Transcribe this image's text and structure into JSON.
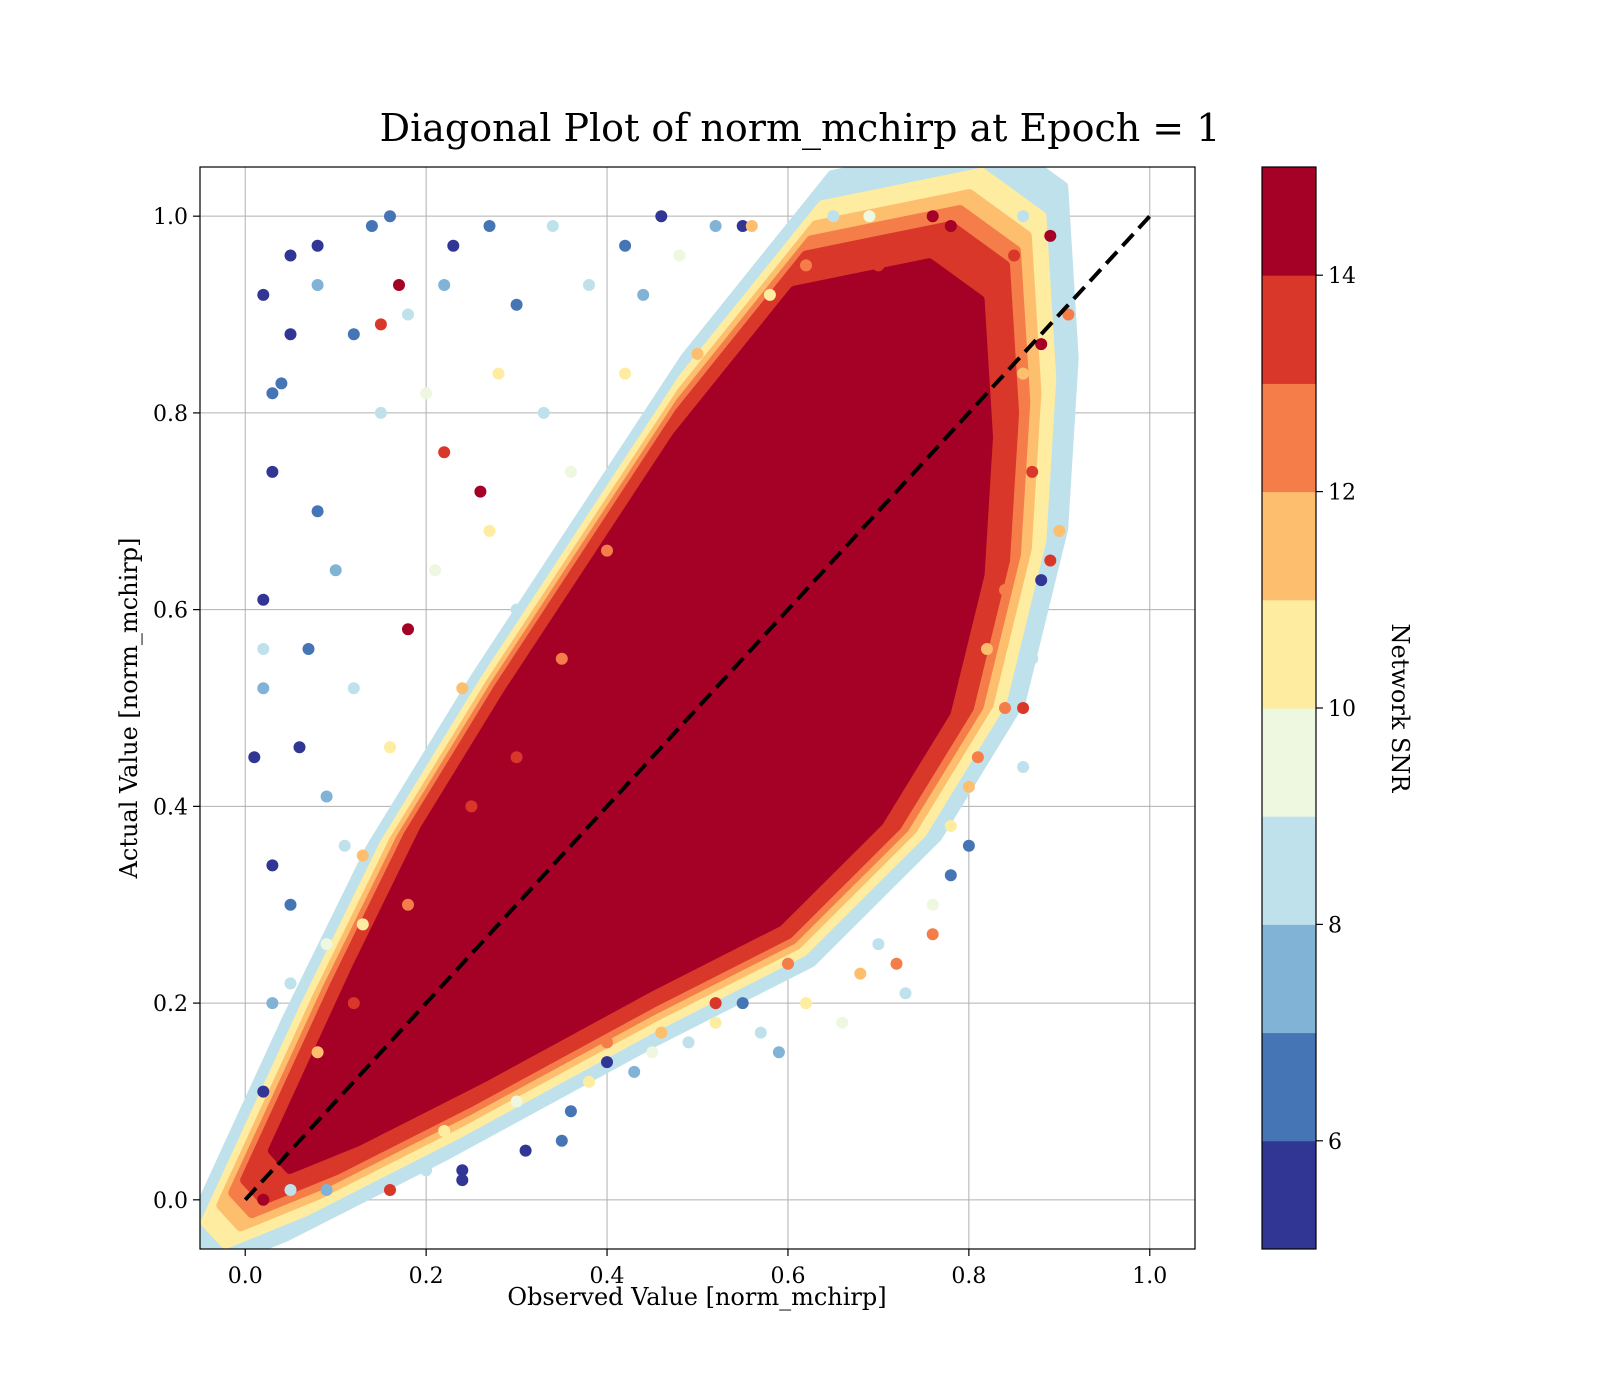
{
  "chart_data": {
    "type": "scatter",
    "title": "Diagonal Plot of norm_mchirp at Epoch = 1",
    "xlabel": "Observed Value [norm_mchirp]",
    "ylabel": "Actual Value [norm_mchirp]",
    "xlim": [
      -0.05,
      1.05
    ],
    "ylim": [
      -0.05,
      1.05
    ],
    "xticks": [
      "0.0",
      "0.2",
      "0.4",
      "0.6",
      "0.8",
      "1.0"
    ],
    "yticks": [
      "0.0",
      "0.2",
      "0.4",
      "0.6",
      "0.8",
      "1.0"
    ],
    "grid": true,
    "reference_line": {
      "x": [
        0,
        1
      ],
      "y": [
        0,
        1
      ],
      "style": "dashed",
      "color": "#000000"
    },
    "colorbar": {
      "label": "Network SNR",
      "range": [
        5,
        15
      ],
      "ticks": [
        "6",
        "8",
        "10",
        "12",
        "14"
      ],
      "colors": [
        "#313695",
        "#4575b4",
        "#80b3d5",
        "#bfe1ec",
        "#eef7e0",
        "#feeca0",
        "#fdbe6e",
        "#f47d4a",
        "#d93729",
        "#a50026"
      ]
    },
    "points": [
      {
        "x": 0.02,
        "y": 0.92,
        "snr": 5.3
      },
      {
        "x": 0.05,
        "y": 0.96,
        "snr": 5.4
      },
      {
        "x": 0.08,
        "y": 0.97,
        "snr": 5.6
      },
      {
        "x": 0.14,
        "y": 0.99,
        "snr": 6.2
      },
      {
        "x": 0.16,
        "y": 1.0,
        "snr": 6.8
      },
      {
        "x": 0.23,
        "y": 0.97,
        "snr": 5.8
      },
      {
        "x": 0.27,
        "y": 0.99,
        "snr": 6.5
      },
      {
        "x": 0.34,
        "y": 0.99,
        "snr": 8.5
      },
      {
        "x": 0.42,
        "y": 0.97,
        "snr": 6.1
      },
      {
        "x": 0.46,
        "y": 1.0,
        "snr": 5.9
      },
      {
        "x": 0.52,
        "y": 0.99,
        "snr": 7.4
      },
      {
        "x": 0.55,
        "y": 0.99,
        "snr": 5.5
      },
      {
        "x": 0.56,
        "y": 0.99,
        "snr": 11.5
      },
      {
        "x": 0.65,
        "y": 1.0,
        "snr": 8.8
      },
      {
        "x": 0.69,
        "y": 1.0,
        "snr": 9.7
      },
      {
        "x": 0.76,
        "y": 1.0,
        "snr": 14.6
      },
      {
        "x": 0.78,
        "y": 0.99,
        "snr": 14.8
      },
      {
        "x": 0.86,
        "y": 1.0,
        "snr": 8.9
      },
      {
        "x": 0.89,
        "y": 0.98,
        "snr": 14.7
      },
      {
        "x": 0.91,
        "y": 0.9,
        "snr": 12.7
      },
      {
        "x": 0.88,
        "y": 0.87,
        "snr": 14.5
      },
      {
        "x": 0.9,
        "y": 0.68,
        "snr": 11.6
      },
      {
        "x": 0.89,
        "y": 0.65,
        "snr": 13.5
      },
      {
        "x": 0.87,
        "y": 0.55,
        "snr": 8.2
      },
      {
        "x": 0.86,
        "y": 0.5,
        "snr": 13.8
      },
      {
        "x": 0.86,
        "y": 0.44,
        "snr": 8.4
      },
      {
        "x": 0.88,
        "y": 0.63,
        "snr": 5.9
      },
      {
        "x": 0.81,
        "y": 0.45,
        "snr": 12.9
      },
      {
        "x": 0.8,
        "y": 0.36,
        "snr": 6.3
      },
      {
        "x": 0.78,
        "y": 0.33,
        "snr": 6.8
      },
      {
        "x": 0.76,
        "y": 0.27,
        "snr": 12.9
      },
      {
        "x": 0.73,
        "y": 0.21,
        "snr": 8.4
      },
      {
        "x": 0.72,
        "y": 0.24,
        "snr": 12.4
      },
      {
        "x": 0.66,
        "y": 0.18,
        "snr": 9.6
      },
      {
        "x": 0.59,
        "y": 0.15,
        "snr": 7.8
      },
      {
        "x": 0.57,
        "y": 0.17,
        "snr": 8.1
      },
      {
        "x": 0.55,
        "y": 0.2,
        "snr": 6.0
      },
      {
        "x": 0.46,
        "y": 0.17,
        "snr": 11.3
      },
      {
        "x": 0.49,
        "y": 0.16,
        "snr": 8.8
      },
      {
        "x": 0.4,
        "y": 0.14,
        "snr": 5.9
      },
      {
        "x": 0.43,
        "y": 0.13,
        "snr": 7.2
      },
      {
        "x": 0.36,
        "y": 0.09,
        "snr": 6.4
      },
      {
        "x": 0.35,
        "y": 0.06,
        "snr": 6.9
      },
      {
        "x": 0.31,
        "y": 0.05,
        "snr": 5.7
      },
      {
        "x": 0.24,
        "y": 0.03,
        "snr": 5.8
      },
      {
        "x": 0.24,
        "y": 0.02,
        "snr": 5.5
      },
      {
        "x": 0.2,
        "y": 0.03,
        "snr": 8.1
      },
      {
        "x": 0.16,
        "y": 0.01,
        "snr": 13.1
      },
      {
        "x": 0.09,
        "y": 0.01,
        "snr": 7.3
      },
      {
        "x": 0.05,
        "y": 0.01,
        "snr": 8.3
      },
      {
        "x": 0.02,
        "y": 0.0,
        "snr": 14.5
      },
      {
        "x": 0.03,
        "y": 0.82,
        "snr": 6.7
      },
      {
        "x": 0.02,
        "y": 0.61,
        "snr": 5.4
      },
      {
        "x": 0.02,
        "y": 0.56,
        "snr": 8.4
      },
      {
        "x": 0.02,
        "y": 0.52,
        "snr": 7.0
      },
      {
        "x": 0.01,
        "y": 0.45,
        "snr": 5.3
      },
      {
        "x": 0.03,
        "y": 0.34,
        "snr": 5.6
      },
      {
        "x": 0.03,
        "y": 0.2,
        "snr": 7.0
      },
      {
        "x": 0.02,
        "y": 0.11,
        "snr": 5.4
      },
      {
        "x": 0.03,
        "y": 0.74,
        "snr": 5.6
      },
      {
        "x": 0.05,
        "y": 0.88,
        "snr": 5.8
      },
      {
        "x": 0.04,
        "y": 0.83,
        "snr": 6.1
      },
      {
        "x": 0.08,
        "y": 0.93,
        "snr": 7.2
      },
      {
        "x": 0.12,
        "y": 0.88,
        "snr": 6.3
      },
      {
        "x": 0.18,
        "y": 0.9,
        "snr": 8.6
      },
      {
        "x": 0.22,
        "y": 0.93,
        "snr": 7.5
      },
      {
        "x": 0.3,
        "y": 0.91,
        "snr": 6.2
      },
      {
        "x": 0.38,
        "y": 0.93,
        "snr": 8.4
      },
      {
        "x": 0.44,
        "y": 0.92,
        "snr": 7.8
      },
      {
        "x": 0.48,
        "y": 0.96,
        "snr": 9.3
      },
      {
        "x": 0.15,
        "y": 0.89,
        "snr": 13.8
      },
      {
        "x": 0.17,
        "y": 0.93,
        "snr": 14.4
      },
      {
        "x": 0.22,
        "y": 0.76,
        "snr": 13.2
      },
      {
        "x": 0.26,
        "y": 0.72,
        "snr": 14.1
      },
      {
        "x": 0.18,
        "y": 0.58,
        "snr": 14.2
      },
      {
        "x": 0.08,
        "y": 0.7,
        "snr": 6.1
      },
      {
        "x": 0.1,
        "y": 0.64,
        "snr": 7.4
      },
      {
        "x": 0.07,
        "y": 0.56,
        "snr": 6.6
      },
      {
        "x": 0.12,
        "y": 0.52,
        "snr": 8.2
      },
      {
        "x": 0.06,
        "y": 0.46,
        "snr": 5.5
      },
      {
        "x": 0.09,
        "y": 0.41,
        "snr": 7.9
      },
      {
        "x": 0.11,
        "y": 0.36,
        "snr": 8.6
      },
      {
        "x": 0.05,
        "y": 0.3,
        "snr": 6.8
      },
      {
        "x": 0.09,
        "y": 0.26,
        "snr": 9.4
      },
      {
        "x": 0.05,
        "y": 0.22,
        "snr": 8.3
      },
      {
        "x": 0.15,
        "y": 0.8,
        "snr": 8.9
      },
      {
        "x": 0.2,
        "y": 0.82,
        "snr": 9.6
      },
      {
        "x": 0.28,
        "y": 0.84,
        "snr": 10.4
      },
      {
        "x": 0.33,
        "y": 0.8,
        "snr": 8.1
      },
      {
        "x": 0.36,
        "y": 0.74,
        "snr": 9.2
      },
      {
        "x": 0.27,
        "y": 0.68,
        "snr": 10.6
      },
      {
        "x": 0.3,
        "y": 0.6,
        "snr": 8.7
      },
      {
        "x": 0.21,
        "y": 0.64,
        "snr": 9.8
      },
      {
        "x": 0.24,
        "y": 0.52,
        "snr": 11.2
      },
      {
        "x": 0.16,
        "y": 0.46,
        "snr": 10.2
      },
      {
        "x": 0.13,
        "y": 0.35,
        "snr": 11.5
      },
      {
        "x": 0.13,
        "y": 0.28,
        "snr": 10.9
      },
      {
        "x": 0.08,
        "y": 0.15,
        "snr": 11.8
      },
      {
        "x": 0.42,
        "y": 0.84,
        "snr": 10.8
      },
      {
        "x": 0.5,
        "y": 0.86,
        "snr": 11.4
      },
      {
        "x": 0.58,
        "y": 0.92,
        "snr": 10.7
      },
      {
        "x": 0.62,
        "y": 0.95,
        "snr": 12.1
      },
      {
        "x": 0.4,
        "y": 0.66,
        "snr": 12.8
      },
      {
        "x": 0.35,
        "y": 0.55,
        "snr": 12.6
      },
      {
        "x": 0.3,
        "y": 0.45,
        "snr": 13.4
      },
      {
        "x": 0.25,
        "y": 0.4,
        "snr": 13.1
      },
      {
        "x": 0.18,
        "y": 0.3,
        "snr": 12.4
      },
      {
        "x": 0.12,
        "y": 0.2,
        "snr": 13.0
      },
      {
        "x": 0.68,
        "y": 0.23,
        "snr": 11.8
      },
      {
        "x": 0.62,
        "y": 0.2,
        "snr": 10.6
      },
      {
        "x": 0.52,
        "y": 0.18,
        "snr": 10.3
      },
      {
        "x": 0.45,
        "y": 0.15,
        "snr": 9.1
      },
      {
        "x": 0.38,
        "y": 0.12,
        "snr": 10.8
      },
      {
        "x": 0.3,
        "y": 0.1,
        "snr": 9.7
      },
      {
        "x": 0.22,
        "y": 0.07,
        "snr": 10.2
      },
      {
        "x": 0.8,
        "y": 0.42,
        "snr": 11.4
      },
      {
        "x": 0.78,
        "y": 0.38,
        "snr": 10.1
      },
      {
        "x": 0.84,
        "y": 0.5,
        "snr": 12.2
      },
      {
        "x": 0.76,
        "y": 0.3,
        "snr": 9.3
      },
      {
        "x": 0.7,
        "y": 0.26,
        "snr": 8.9
      },
      {
        "x": 0.6,
        "y": 0.24,
        "snr": 12.7
      },
      {
        "x": 0.52,
        "y": 0.2,
        "snr": 13.3
      },
      {
        "x": 0.4,
        "y": 0.16,
        "snr": 12.9
      },
      {
        "x": 0.7,
        "y": 0.95,
        "snr": 13.6
      },
      {
        "x": 0.85,
        "y": 0.96,
        "snr": 13.1
      },
      {
        "x": 0.86,
        "y": 0.84,
        "snr": 11.2
      },
      {
        "x": 0.87,
        "y": 0.74,
        "snr": 13.4
      },
      {
        "x": 0.84,
        "y": 0.62,
        "snr": 12.8
      },
      {
        "x": 0.82,
        "y": 0.56,
        "snr": 11.9
      }
    ],
    "dense_band": {
      "description": "bulk of points along the diagonal",
      "polygon": [
        [
          0.02,
          0.0
        ],
        [
          0.1,
          0.03
        ],
        [
          0.25,
          0.1
        ],
        [
          0.45,
          0.2
        ],
        [
          0.6,
          0.27
        ],
        [
          0.72,
          0.38
        ],
        [
          0.8,
          0.5
        ],
        [
          0.84,
          0.65
        ],
        [
          0.85,
          0.8
        ],
        [
          0.84,
          0.95
        ],
        [
          0.78,
          0.99
        ],
        [
          0.62,
          0.96
        ],
        [
          0.48,
          0.8
        ],
        [
          0.38,
          0.66
        ],
        [
          0.28,
          0.52
        ],
        [
          0.18,
          0.37
        ],
        [
          0.1,
          0.22
        ],
        [
          0.04,
          0.1
        ],
        [
          0.0,
          0.02
        ]
      ],
      "snr": 15
    }
  }
}
